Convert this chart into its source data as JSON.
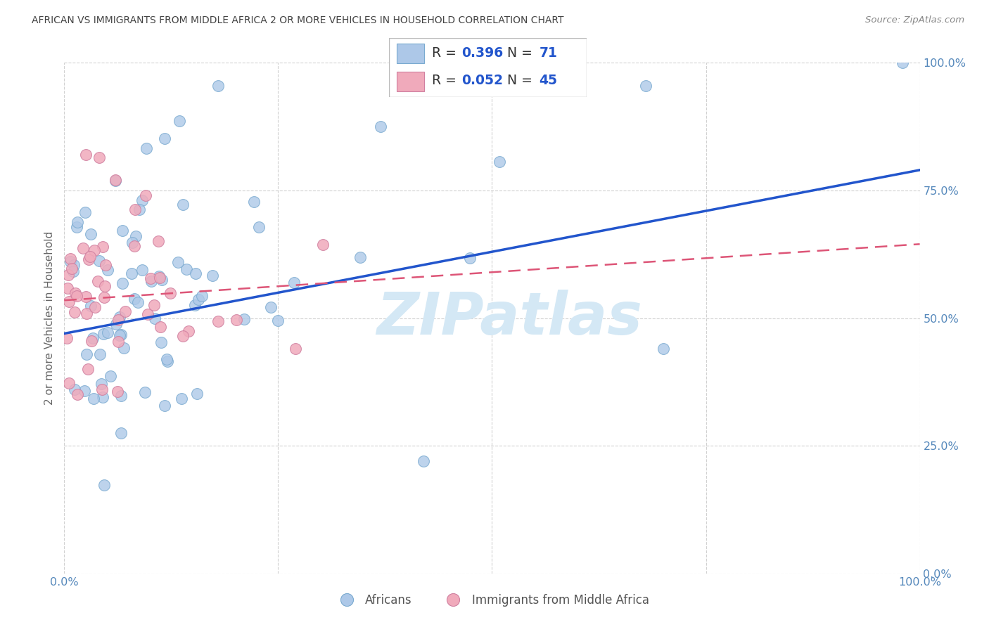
{
  "title": "AFRICAN VS IMMIGRANTS FROM MIDDLE AFRICA 2 OR MORE VEHICLES IN HOUSEHOLD CORRELATION CHART",
  "source": "Source: ZipAtlas.com",
  "ylabel": "2 or more Vehicles in Household",
  "legend_label1": "Africans",
  "legend_label2": "Immigrants from Middle Africa",
  "r1": 0.396,
  "n1": 71,
  "r2": 0.052,
  "n2": 45,
  "blue_fill": "#adc8e8",
  "blue_edge": "#7aaad0",
  "pink_fill": "#f0aabb",
  "pink_edge": "#d080a0",
  "blue_line_color": "#2255cc",
  "pink_line_color": "#dd5577",
  "title_color": "#444444",
  "axis_tick_color": "#5588bb",
  "watermark_color": "#d4e8f5",
  "grid_color": "#cccccc",
  "background_color": "#ffffff",
  "legend_text_label_color": "#333333",
  "legend_num_color": "#2255cc",
  "source_color": "#888888"
}
